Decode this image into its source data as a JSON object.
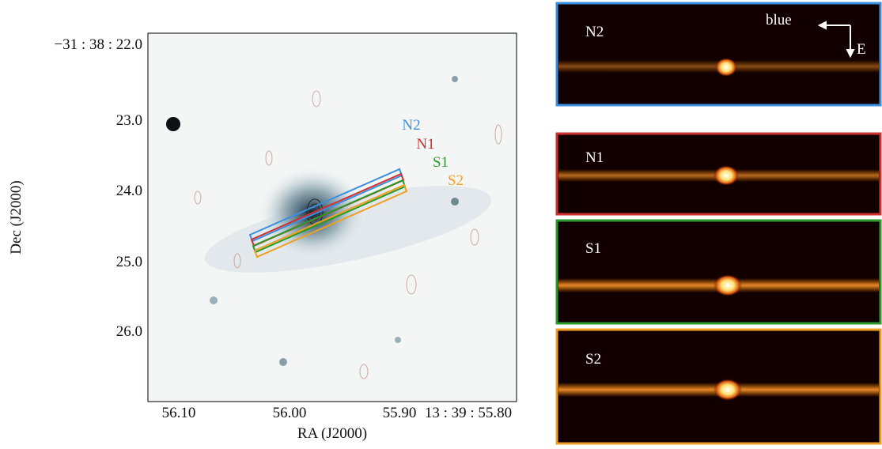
{
  "left_panel": {
    "y_label": "Dec (J2000)",
    "x_label": "RA (J2000)",
    "yticks": [
      "−31 : 38 : 22.0",
      "23.0",
      "24.0",
      "25.0",
      "26.0"
    ],
    "xticks": [
      "56.10",
      "56.00",
      "55.90",
      "13 : 39 : 55.80"
    ],
    "slits": [
      "N2",
      "N1",
      "S1",
      "S2"
    ]
  },
  "right_panels": {
    "panels": [
      "N2",
      "N1",
      "S1",
      "S2"
    ],
    "direction_labels": [
      "blue",
      "E"
    ]
  }
}
